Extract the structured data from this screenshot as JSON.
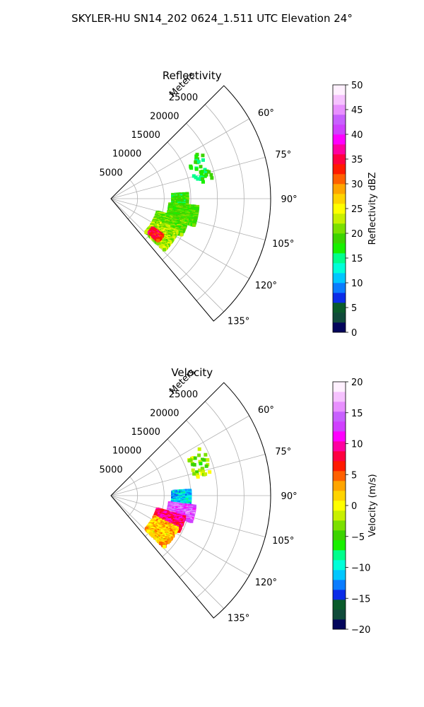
{
  "figure": {
    "suptitle": "SKYLER-HU  SN14_202  0624_1.511 UTC Elevation 24°"
  },
  "chart_data": [
    {
      "type": "polar-sector",
      "title": "Reflectivity",
      "radial_axis_label": "Meters",
      "r_ticks": [
        5000,
        10000,
        15000,
        20000,
        25000
      ],
      "r_tick_labels": [
        "5000",
        "10000",
        "15000",
        "20000",
        "25000"
      ],
      "r_max_m": 30000,
      "theta_ticks_deg": [
        60,
        75,
        90,
        105,
        120,
        135
      ],
      "theta_tick_labels": [
        "60°",
        "75°",
        "90°",
        "105°",
        "120°",
        "135°"
      ],
      "theta_range_deg": [
        45,
        140
      ],
      "grid": true,
      "colorbar": {
        "label": "Reflectivity dBZ",
        "range": [
          0,
          50
        ],
        "ticks": [
          0,
          5,
          10,
          15,
          20,
          25,
          30,
          35,
          40,
          45,
          50
        ],
        "tick_labels": [
          "0",
          "5",
          "10",
          "15",
          "20",
          "25",
          "30",
          "35",
          "40",
          "45",
          "50"
        ],
        "colors": [
          "#03055b",
          "#104a3a",
          "#0a5b2b",
          "#0b2ce8",
          "#0a7cff",
          "#00c7ff",
          "#00ffd9",
          "#00ff8c",
          "#18f000",
          "#3cd400",
          "#7be000",
          "#c8f000",
          "#ffff00",
          "#ffd400",
          "#ffa500",
          "#ff6000",
          "#ff1a00",
          "#ff0040",
          "#ff00a0",
          "#ff00ff",
          "#d040ff",
          "#c860ff",
          "#e890ff",
          "#f6c2ff",
          "#fff0ff"
        ]
      },
      "data_regions": [
        {
          "field": "main-echo",
          "theta_deg": [
            86,
            95
          ],
          "r_m": [
            11500,
            14500
          ],
          "value_dbz": 18
        },
        {
          "field": "main-echo",
          "theta_deg": [
            95,
            108
          ],
          "r_m": [
            11000,
            16500
          ],
          "value_dbz": 19
        },
        {
          "field": "main-echo",
          "theta_deg": [
            106,
            118
          ],
          "r_m": [
            9000,
            15000
          ],
          "value_dbz": 20
        },
        {
          "field": "main-echo",
          "theta_deg": [
            116,
            134
          ],
          "r_m": [
            9000,
            14000
          ],
          "value_dbz": 22
        },
        {
          "field": "core",
          "theta_deg": [
            125,
            132
          ],
          "r_m": [
            9500,
            12000
          ],
          "value_dbz": 34
        },
        {
          "field": "scatter",
          "theta_deg": [
            62,
            80
          ],
          "r_m": [
            16000,
            19500
          ],
          "value_dbz": 17
        }
      ]
    },
    {
      "type": "polar-sector",
      "title": "Velocity",
      "radial_axis_label": "Meters",
      "r_ticks": [
        5000,
        10000,
        15000,
        20000,
        25000
      ],
      "r_tick_labels": [
        "5000",
        "10000",
        "15000",
        "20000",
        "25000"
      ],
      "r_max_m": 30000,
      "theta_ticks_deg": [
        60,
        75,
        90,
        105,
        120,
        135
      ],
      "theta_tick_labels": [
        "60°",
        "75°",
        "90°",
        "105°",
        "120°",
        "135°"
      ],
      "theta_range_deg": [
        45,
        140
      ],
      "grid": true,
      "colorbar": {
        "label": "Velocity (m/s)",
        "range": [
          -20,
          20
        ],
        "ticks": [
          -20,
          -15,
          -10,
          -5,
          0,
          5,
          10,
          15,
          20
        ],
        "tick_labels": [
          "−20",
          "−15",
          "−10",
          "−5",
          "0",
          "5",
          "10",
          "15",
          "20"
        ],
        "colors": [
          "#03055b",
          "#104a3a",
          "#0a5b2b",
          "#0b2ce8",
          "#0a7cff",
          "#00c7ff",
          "#00ffd9",
          "#00ff8c",
          "#18f000",
          "#3cd400",
          "#7be000",
          "#c8f000",
          "#ffff00",
          "#ffd400",
          "#ffa500",
          "#ff6000",
          "#ff1a00",
          "#ff0040",
          "#ff00a0",
          "#ff00ff",
          "#d040ff",
          "#c860ff",
          "#e890ff",
          "#f6c2ff",
          "#fff0ff"
        ]
      },
      "data_regions": [
        {
          "field": "inbound",
          "theta_deg": [
            86,
            97
          ],
          "r_m": [
            11500,
            15000
          ],
          "value_ms": -11
        },
        {
          "field": "outbound",
          "theta_deg": [
            97,
            108
          ],
          "r_m": [
            11000,
            16000
          ],
          "value_ms": 14
        },
        {
          "field": "outbound",
          "theta_deg": [
            106,
            118
          ],
          "r_m": [
            9000,
            14500
          ],
          "value_ms": 9
        },
        {
          "field": "near-zero",
          "theta_deg": [
            116,
            134
          ],
          "r_m": [
            9000,
            14000
          ],
          "value_ms": 2
        },
        {
          "field": "scatter",
          "theta_deg": [
            62,
            80
          ],
          "r_m": [
            16000,
            19500
          ],
          "value_ms": -3
        }
      ]
    }
  ]
}
